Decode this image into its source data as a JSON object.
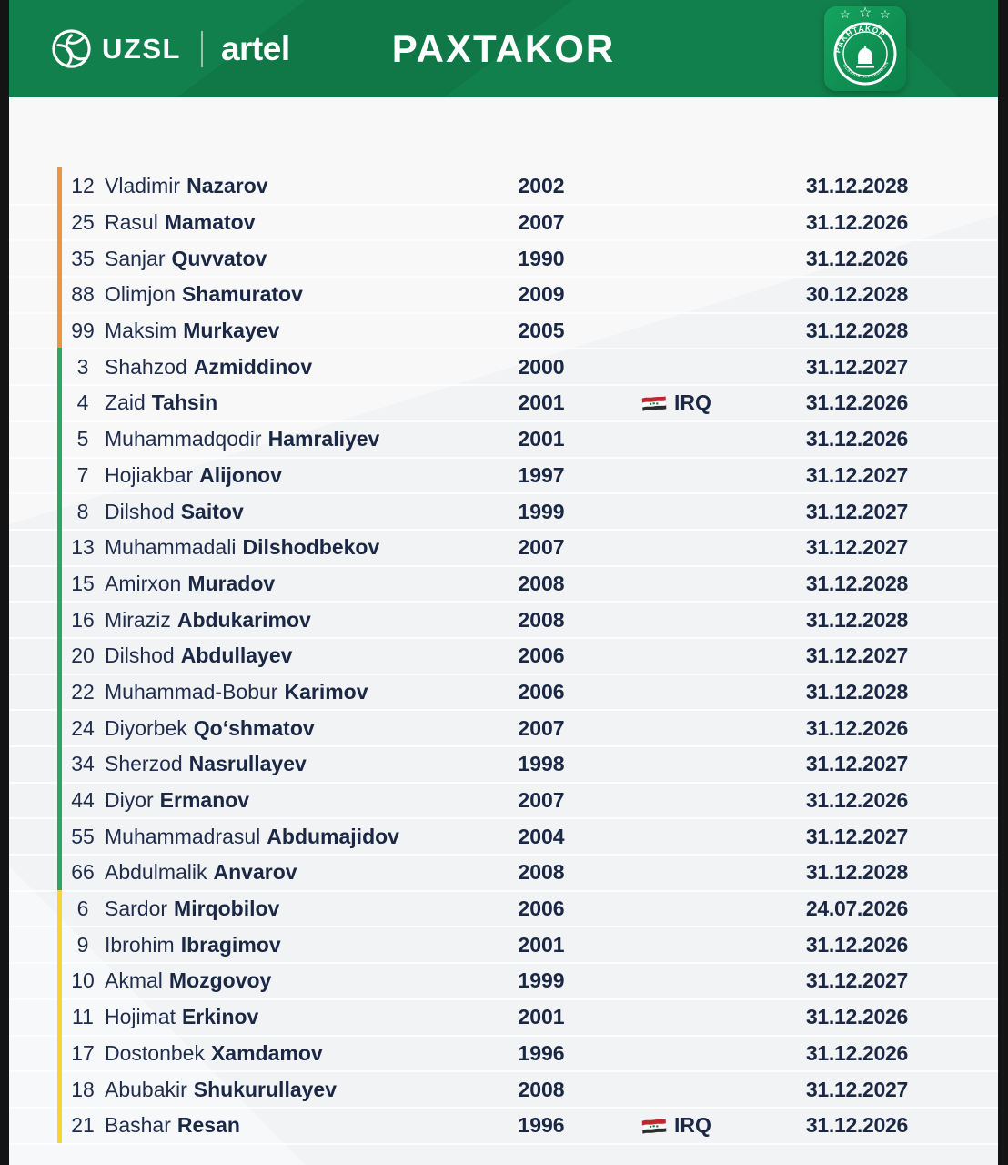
{
  "header": {
    "league_logo_text": "UZSL",
    "sponsor_logo_text": "artel",
    "title": "PAXTAKOR"
  },
  "badge": {
    "stars": "☆☆☆",
    "arc_top_text": "PAKHTAKOR",
    "arc_bottom_text": "UZBEKISTAN TASHKENT"
  },
  "colors": {
    "header_green": "#12804c",
    "badge_green_light": "#14a45f",
    "badge_green_dark": "#0b8049",
    "text_navy": "#1f2c4c",
    "stripe_goalkeepers": "#ec9440",
    "stripe_defenders": "#2ca566",
    "stripe_attackers": "#f7d52d",
    "flag_red": "#c1272d",
    "flag_white": "#ffffff",
    "flag_green": "#007a3d",
    "flag_black": "#2b2b2b"
  },
  "chart_data": {
    "type": "table",
    "title": "PAXTAKOR",
    "columns": [
      "number",
      "first_name",
      "last_name",
      "birth_year",
      "nationality",
      "contract_until",
      "position_group"
    ],
    "rows": [
      {
        "number": "12",
        "first": "Vladimir",
        "last": "Nazarov",
        "year": "2002",
        "nat": "",
        "date": "31.12.2028",
        "group": "gk"
      },
      {
        "number": "25",
        "first": "Rasul",
        "last": "Mamatov",
        "year": "2007",
        "nat": "",
        "date": "31.12.2026",
        "group": "gk"
      },
      {
        "number": "35",
        "first": "Sanjar",
        "last": "Quvvatov",
        "year": "1990",
        "nat": "",
        "date": "31.12.2026",
        "group": "gk"
      },
      {
        "number": "88",
        "first": "Olimjon",
        "last": "Shamuratov",
        "year": "2009",
        "nat": "",
        "date": "30.12.2028",
        "group": "gk"
      },
      {
        "number": "99",
        "first": "Maksim",
        "last": "Murkayev",
        "year": "2005",
        "nat": "",
        "date": "31.12.2028",
        "group": "gk"
      },
      {
        "number": "3",
        "first": "Shahzod",
        "last": "Azmiddinov",
        "year": "2000",
        "nat": "",
        "date": "31.12.2027",
        "group": "df"
      },
      {
        "number": "4",
        "first": "Zaid",
        "last": "Tahsin",
        "year": "2001",
        "nat": "IRQ",
        "date": "31.12.2026",
        "group": "df"
      },
      {
        "number": "5",
        "first": "Muhammadqodir",
        "last": "Hamraliyev",
        "year": "2001",
        "nat": "",
        "date": "31.12.2026",
        "group": "df"
      },
      {
        "number": "7",
        "first": "Hojiakbar",
        "last": "Alijonov",
        "year": "1997",
        "nat": "",
        "date": "31.12.2027",
        "group": "df"
      },
      {
        "number": "8",
        "first": "Dilshod",
        "last": "Saitov",
        "year": "1999",
        "nat": "",
        "date": "31.12.2027",
        "group": "df"
      },
      {
        "number": "13",
        "first": "Muhammadali",
        "last": "Dilshodbekov",
        "year": "2007",
        "nat": "",
        "date": "31.12.2027",
        "group": "df"
      },
      {
        "number": "15",
        "first": "Amirxon",
        "last": "Muradov",
        "year": "2008",
        "nat": "",
        "date": "31.12.2028",
        "group": "df"
      },
      {
        "number": "16",
        "first": "Miraziz",
        "last": "Abdukarimov",
        "year": "2008",
        "nat": "",
        "date": "31.12.2028",
        "group": "df"
      },
      {
        "number": "20",
        "first": "Dilshod",
        "last": "Abdullayev",
        "year": "2006",
        "nat": "",
        "date": "31.12.2027",
        "group": "df"
      },
      {
        "number": "22",
        "first": "Muhammad-Bobur",
        "last": "Karimov",
        "year": "2006",
        "nat": "",
        "date": "31.12.2028",
        "group": "df"
      },
      {
        "number": "24",
        "first": "Diyorbek",
        "last": "Qoʻshmatov",
        "year": "2007",
        "nat": "",
        "date": "31.12.2026",
        "group": "df"
      },
      {
        "number": "34",
        "first": "Sherzod",
        "last": "Nasrullayev",
        "year": "1998",
        "nat": "",
        "date": "31.12.2027",
        "group": "df"
      },
      {
        "number": "44",
        "first": "Diyor",
        "last": "Ermanov",
        "year": "2007",
        "nat": "",
        "date": "31.12.2026",
        "group": "df"
      },
      {
        "number": "55",
        "first": "Muhammadrasul",
        "last": "Abdumajidov",
        "year": "2004",
        "nat": "",
        "date": "31.12.2027",
        "group": "df"
      },
      {
        "number": "66",
        "first": "Abdulmalik",
        "last": "Anvarov",
        "year": "2008",
        "nat": "",
        "date": "31.12.2028",
        "group": "df"
      },
      {
        "number": "6",
        "first": "Sardor",
        "last": "Mirqobilov",
        "year": "2006",
        "nat": "",
        "date": "24.07.2026",
        "group": "at"
      },
      {
        "number": "9",
        "first": "Ibrohim",
        "last": "Ibragimov",
        "year": "2001",
        "nat": "",
        "date": "31.12.2026",
        "group": "at"
      },
      {
        "number": "10",
        "first": "Akmal",
        "last": "Mozgovoy",
        "year": "1999",
        "nat": "",
        "date": "31.12.2027",
        "group": "at"
      },
      {
        "number": "11",
        "first": "Hojimat",
        "last": "Erkinov",
        "year": "2001",
        "nat": "",
        "date": "31.12.2026",
        "group": "at"
      },
      {
        "number": "17",
        "first": "Dostonbek",
        "last": "Xamdamov",
        "year": "1996",
        "nat": "",
        "date": "31.12.2026",
        "group": "at"
      },
      {
        "number": "18",
        "first": "Abubakir",
        "last": "Shukurullayev",
        "year": "2008",
        "nat": "",
        "date": "31.12.2027",
        "group": "at"
      },
      {
        "number": "21",
        "first": "Bashar",
        "last": "Resan",
        "year": "1996",
        "nat": "IRQ",
        "date": "31.12.2026",
        "group": "at"
      }
    ]
  }
}
